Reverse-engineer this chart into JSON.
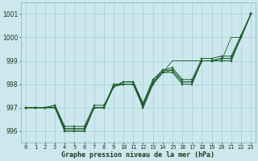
{
  "title": "Graphe pression niveau de la mer (hPa)",
  "x_labels": [
    "0",
    "1",
    "2",
    "3",
    "4",
    "5",
    "6",
    "7",
    "8",
    "9",
    "10",
    "11",
    "12",
    "13",
    "14",
    "15",
    "16",
    "17",
    "18",
    "19",
    "20",
    "21",
    "22",
    "23"
  ],
  "xlim": [
    -0.5,
    23.5
  ],
  "ylim": [
    995.5,
    1001.5
  ],
  "yticks": [
    996,
    997,
    998,
    999,
    1000,
    1001
  ],
  "bg_color": "#cce8ee",
  "grid_color": "#aaccd4",
  "line_color": "#1a5c2a",
  "series": [
    [
      997.0,
      997.0,
      997.0,
      997.0,
      996.0,
      996.0,
      996.0,
      997.0,
      997.0,
      998.0,
      998.0,
      998.0,
      997.0,
      998.0,
      998.5,
      998.5,
      998.0,
      998.0,
      999.0,
      999.0,
      999.0,
      999.0,
      1000.0,
      1001.0
    ],
    [
      997.0,
      997.0,
      997.0,
      997.0,
      996.1,
      996.1,
      996.1,
      997.0,
      997.0,
      997.9,
      998.0,
      998.0,
      997.1,
      998.1,
      998.5,
      998.6,
      998.1,
      998.1,
      999.0,
      999.0,
      999.1,
      999.1,
      1000.0,
      1001.0
    ],
    [
      997.0,
      997.0,
      997.0,
      997.1,
      996.1,
      996.1,
      996.1,
      997.0,
      997.0,
      997.9,
      998.1,
      998.1,
      997.1,
      998.1,
      998.6,
      998.6,
      998.1,
      998.1,
      999.0,
      999.0,
      999.1,
      999.1,
      1000.0,
      1001.0
    ],
    [
      997.0,
      997.0,
      997.0,
      997.1,
      996.2,
      996.2,
      996.2,
      997.1,
      997.1,
      997.9,
      998.1,
      998.1,
      997.2,
      998.2,
      998.6,
      998.7,
      998.2,
      998.2,
      999.1,
      999.1,
      999.2,
      999.2,
      1000.1,
      1001.0
    ]
  ],
  "series_top": [
    997.0,
    997.0,
    997.0,
    997.0,
    996.0,
    996.0,
    996.0,
    997.0,
    997.0,
    998.0,
    998.0,
    998.0,
    997.0,
    998.0,
    998.5,
    999.0,
    999.0,
    999.0,
    999.0,
    999.0,
    999.0,
    1000.0,
    1000.0,
    1001.0
  ]
}
